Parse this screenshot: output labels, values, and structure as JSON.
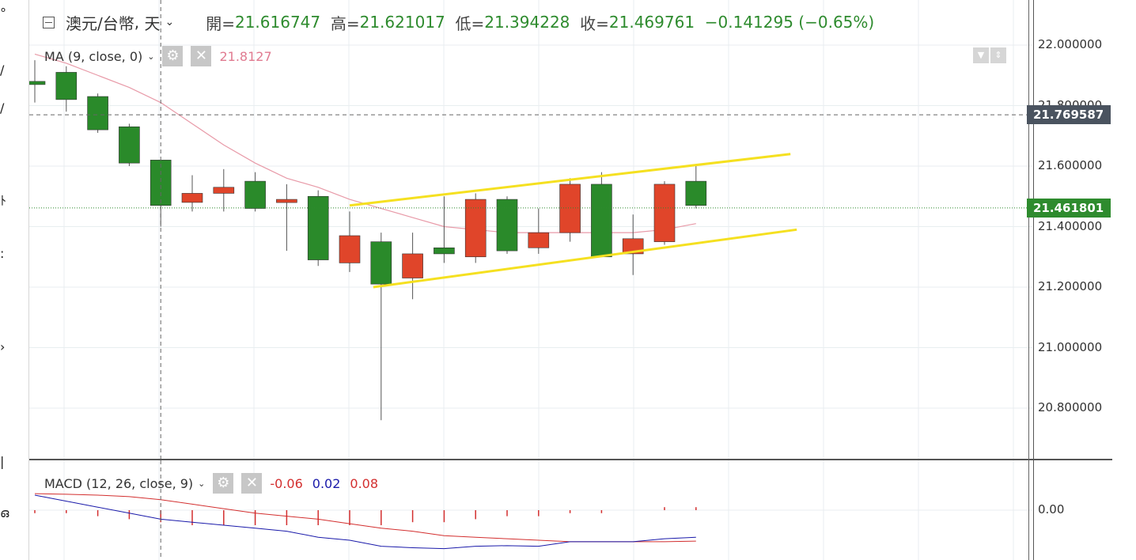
{
  "header": {
    "symbol": "澳元/台幣",
    "interval": "天",
    "open_label": "開=",
    "open": "21.616747",
    "high_label": "高=",
    "high": "21.621017",
    "low_label": "低=",
    "low": "21.394228",
    "close_label": "收=",
    "close": "21.469761",
    "change": "−0.141295 (−0.65%)"
  },
  "ma_indicator": {
    "label": "MA (9, close, 0)",
    "value": "21.8127",
    "color": "#e89aa8"
  },
  "macd_indicator": {
    "label": "MACD (12, 26, close, 9)",
    "hist": "-0.06",
    "macd": "0.02",
    "signal": "0.08",
    "hist_color": "#d32f2f",
    "macd_color": "#1a1aaa",
    "signal_color": "#d32f2f"
  },
  "price_axis": {
    "ticks": [
      "22.000000",
      "21.800000",
      "21.600000",
      "21.400000",
      "21.200000",
      "21.000000",
      "20.800000"
    ],
    "crosshair_badge": "21.769587",
    "crosshair_color": "#4a535f",
    "last_price_badge": "21.461801",
    "last_price_color": "#2e8b2e"
  },
  "macd_axis": {
    "ticks": [
      "0.00"
    ]
  },
  "colors": {
    "up": "#2a8a2a",
    "down": "#e0452a",
    "channel": "#f5e020",
    "grid": "#e8eef0"
  },
  "chart_data": {
    "type": "candlestick",
    "ylim": [
      20.6,
      22.15
    ],
    "candles": [
      {
        "o": 21.88,
        "h": 21.95,
        "l": 21.81,
        "c": 21.88
      },
      {
        "o": 21.82,
        "h": 21.93,
        "l": 21.78,
        "c": 21.91
      },
      {
        "o": 21.72,
        "h": 21.84,
        "l": 21.71,
        "c": 21.83
      },
      {
        "o": 21.61,
        "h": 21.74,
        "l": 21.6,
        "c": 21.73
      },
      {
        "o": 21.47,
        "h": 21.62,
        "l": 21.4,
        "c": 21.62
      },
      {
        "o": 21.51,
        "h": 21.57,
        "l": 21.45,
        "c": 21.48
      },
      {
        "o": 21.53,
        "h": 21.59,
        "l": 21.45,
        "c": 21.51
      },
      {
        "o": 21.46,
        "h": 21.58,
        "l": 21.45,
        "c": 21.55
      },
      {
        "o": 21.49,
        "h": 21.54,
        "l": 21.32,
        "c": 21.48
      },
      {
        "o": 21.29,
        "h": 21.52,
        "l": 21.27,
        "c": 21.5
      },
      {
        "o": 21.37,
        "h": 21.45,
        "l": 21.25,
        "c": 21.28
      },
      {
        "o": 21.21,
        "h": 21.38,
        "l": 20.76,
        "c": 21.35
      },
      {
        "o": 21.31,
        "h": 21.38,
        "l": 21.16,
        "c": 21.23
      },
      {
        "o": 21.31,
        "h": 21.5,
        "l": 21.28,
        "c": 21.33
      },
      {
        "o": 21.49,
        "h": 21.51,
        "l": 21.28,
        "c": 21.3
      },
      {
        "o": 21.32,
        "h": 21.5,
        "l": 21.31,
        "c": 21.49
      },
      {
        "o": 21.38,
        "h": 21.46,
        "l": 21.31,
        "c": 21.33
      },
      {
        "o": 21.54,
        "h": 21.56,
        "l": 21.35,
        "c": 21.38
      },
      {
        "o": 21.3,
        "h": 21.58,
        "l": 21.3,
        "c": 21.54
      },
      {
        "o": 21.36,
        "h": 21.44,
        "l": 21.24,
        "c": 21.31
      },
      {
        "o": 21.54,
        "h": 21.55,
        "l": 21.34,
        "c": 21.35
      },
      {
        "o": 21.47,
        "h": 21.6,
        "l": 21.46,
        "c": 21.55
      }
    ],
    "ma": [
      21.97,
      21.94,
      21.9,
      21.86,
      21.81,
      21.74,
      21.67,
      21.61,
      21.56,
      21.53,
      21.49,
      21.46,
      21.43,
      21.4,
      21.39,
      21.38,
      21.38,
      21.38,
      21.38,
      21.38,
      21.39,
      21.41
    ],
    "channel_upper": [
      [
        10,
        21.47
      ],
      [
        24,
        21.64
      ]
    ],
    "channel_lower": [
      [
        10.75,
        21.2
      ],
      [
        24.2,
        21.39
      ]
    ],
    "crosshair_index": 4,
    "crosshair_value": 21.769587,
    "last_price": 21.461801
  },
  "macd_data": {
    "ylim": [
      -0.14,
      0.06
    ],
    "hist": [
      -0.01,
      -0.01,
      -0.02,
      -0.03,
      -0.04,
      -0.05,
      -0.05,
      -0.05,
      -0.05,
      -0.05,
      -0.05,
      -0.05,
      -0.04,
      -0.04,
      -0.03,
      -0.02,
      -0.02,
      -0.01,
      -0.01,
      0.0,
      0.01,
      0.01
    ],
    "macd": [
      0.05,
      0.03,
      0.01,
      -0.01,
      -0.03,
      -0.04,
      -0.05,
      -0.06,
      -0.07,
      -0.09,
      -0.1,
      -0.12,
      -0.125,
      -0.128,
      -0.12,
      -0.118,
      -0.12,
      -0.105,
      -0.105,
      -0.105,
      -0.095,
      -0.09
    ],
    "signal": [
      0.055,
      0.053,
      0.05,
      0.045,
      0.035,
      0.02,
      0.005,
      -0.01,
      -0.02,
      -0.03,
      -0.045,
      -0.06,
      -0.07,
      -0.085,
      -0.09,
      -0.095,
      -0.1,
      -0.105,
      -0.105,
      -0.105,
      -0.105,
      -0.103
    ]
  }
}
